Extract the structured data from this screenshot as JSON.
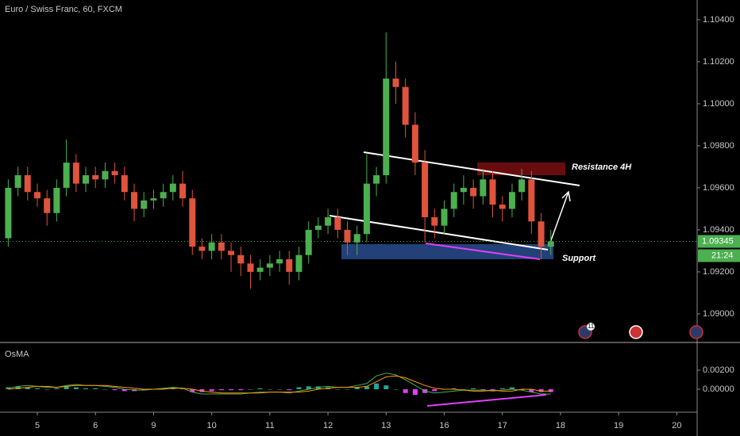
{
  "chart_data": [
    {
      "type": "candlestick",
      "title": "Euro / Swiss Franc, 60, FXCM",
      "x": [
        -0.5,
        -0.333,
        -0.167,
        0,
        0.167,
        0.333,
        0.5,
        0.667,
        0.833,
        1,
        1.167,
        1.333,
        1.5,
        1.667,
        1.833,
        2,
        2.167,
        2.333,
        2.5,
        2.667,
        2.833,
        3,
        3.167,
        3.333,
        3.5,
        3.667,
        3.833,
        4,
        4.167,
        4.333,
        4.5,
        4.667,
        4.833,
        5,
        5.167,
        5.333,
        5.5,
        5.667,
        5.833,
        6,
        6.167,
        6.333,
        6.5,
        6.667,
        6.833,
        7,
        7.167,
        7.333,
        7.5,
        7.667,
        7.833,
        8,
        8.167,
        8.333,
        8.5,
        8.667,
        8.833
      ],
      "open": [
        1.0936,
        1.096,
        1.0966,
        1.0958,
        1.0955,
        1.0948,
        1.096,
        1.0972,
        1.0962,
        1.0966,
        1.0964,
        1.0968,
        1.0966,
        1.0958,
        1.095,
        1.0954,
        1.0955,
        1.0958,
        1.0962,
        1.0955,
        1.0932,
        1.093,
        1.0934,
        1.093,
        1.0928,
        1.0924,
        1.092,
        1.0922,
        1.0924,
        1.0926,
        1.092,
        1.0928,
        1.094,
        1.0942,
        1.0946,
        1.094,
        1.0934,
        1.0938,
        1.0962,
        1.0966,
        1.1012,
        1.1008,
        1.099,
        1.0972,
        1.0946,
        1.0942,
        1.095,
        1.0958,
        1.096,
        1.0956,
        1.0964,
        1.0952,
        1.095,
        1.0958,
        1.0964,
        1.0944,
        1.0932
      ],
      "high": [
        1.0964,
        1.097,
        1.097,
        1.0962,
        1.0959,
        1.0964,
        1.0983,
        1.0976,
        1.097,
        1.097,
        1.0972,
        1.0972,
        1.097,
        1.0962,
        1.0958,
        1.0959,
        1.0962,
        1.0966,
        1.0968,
        1.0959,
        1.0936,
        1.0938,
        1.0938,
        1.0934,
        1.0932,
        1.0928,
        1.0926,
        1.0928,
        1.093,
        1.093,
        1.0932,
        1.0944,
        1.0946,
        1.095,
        1.095,
        1.0944,
        1.0942,
        1.0976,
        1.097,
        1.1034,
        1.102,
        1.1012,
        1.0996,
        1.0978,
        1.095,
        1.0954,
        1.0962,
        1.0966,
        1.0964,
        1.0969,
        1.0968,
        1.0956,
        1.0962,
        1.0969,
        1.0968,
        1.0948,
        1.094
      ],
      "low": [
        1.0932,
        1.0956,
        1.0954,
        1.0951,
        1.0942,
        1.0944,
        1.0956,
        1.0958,
        1.0958,
        1.096,
        1.096,
        1.0962,
        1.0954,
        1.0944,
        1.0946,
        1.095,
        1.0951,
        1.0954,
        1.0951,
        1.0928,
        1.0926,
        1.0926,
        1.0926,
        1.092,
        1.0918,
        1.0912,
        1.0916,
        1.0918,
        1.092,
        1.0914,
        1.0916,
        1.0924,
        1.0936,
        1.0938,
        1.0936,
        1.0928,
        1.0928,
        1.0934,
        1.0956,
        1.0962,
        1.1,
        1.0984,
        1.0966,
        1.0934,
        1.0936,
        1.0938,
        1.0946,
        1.0952,
        1.095,
        1.0952,
        1.0946,
        1.0944,
        1.0946,
        1.0954,
        1.0938,
        1.0926,
        1.0928
      ],
      "close": [
        1.096,
        1.0966,
        1.0958,
        1.0955,
        1.0948,
        1.096,
        1.0972,
        1.0962,
        1.0966,
        1.0964,
        1.0968,
        1.0966,
        1.0958,
        1.095,
        1.0954,
        1.0955,
        1.0958,
        1.0962,
        1.0955,
        1.0932,
        1.093,
        1.0934,
        1.093,
        1.0928,
        1.0924,
        1.092,
        1.0922,
        1.0924,
        1.0926,
        1.092,
        1.0928,
        1.094,
        1.0942,
        1.0946,
        1.094,
        1.0934,
        1.0938,
        1.0962,
        1.0966,
        1.1012,
        1.1008,
        1.099,
        1.0972,
        1.0946,
        1.0942,
        1.095,
        1.0958,
        1.096,
        1.0956,
        1.0964,
        1.0952,
        1.095,
        1.0958,
        1.0964,
        1.0944,
        1.0932,
        1.09345
      ],
      "up_color": "#4caf50",
      "down_color": "#e0533c",
      "xlim": [
        -0.642,
        11.35
      ],
      "ylim": [
        1.08864,
        1.10494
      ],
      "yticks": [
        {
          "value": 1.09,
          "label": "1.09000"
        },
        {
          "value": 1.092,
          "label": "1.09200"
        },
        {
          "value": 1.094,
          "label": "1.09400"
        },
        {
          "value": 1.096,
          "label": "1.09600"
        },
        {
          "value": 1.098,
          "label": "1.09800"
        },
        {
          "value": 1.1,
          "label": "1.10000"
        },
        {
          "value": 1.102,
          "label": "1.10200"
        },
        {
          "value": 1.104,
          "label": "1.10400"
        }
      ],
      "last_price": 1.09345,
      "countdown": "21:24",
      "annotations": [
        "Resistance 4H",
        "Support"
      ],
      "event_badge": "11"
    },
    {
      "type": "osma",
      "title": "OsMA",
      "x": [
        -0.5,
        -0.333,
        -0.167,
        0,
        0.167,
        0.333,
        0.5,
        0.667,
        0.833,
        1,
        1.167,
        1.333,
        1.5,
        1.667,
        1.833,
        2,
        2.167,
        2.333,
        2.5,
        2.667,
        2.833,
        3,
        3.167,
        3.333,
        3.5,
        3.667,
        3.833,
        4,
        4.167,
        4.333,
        4.5,
        4.667,
        4.833,
        5,
        5.167,
        5.333,
        5.5,
        5.667,
        5.833,
        6,
        6.167,
        6.333,
        6.5,
        6.667,
        6.833,
        7,
        7.167,
        7.333,
        7.5,
        7.667,
        7.833,
        8,
        8.167,
        8.333,
        8.5,
        8.667,
        8.833
      ],
      "histogram": [
        0.0002,
        0.0003,
        0.0002,
        0.0001,
        0,
        0.0001,
        0.0003,
        0.0002,
        0.0001,
        0.0001,
        0,
        -0.0001,
        -0.0002,
        -0.0002,
        -0.0001,
        0,
        0.0001,
        0.0002,
        0.0001,
        -0.0003,
        -0.0003,
        -0.0002,
        -0.0001,
        -0.0001,
        -0.0001,
        0,
        0.0001,
        0,
        0,
        -0.0001,
        0.0002,
        0.0003,
        0.0003,
        0.0002,
        0,
        0,
        0.0002,
        0.0003,
        0.0006,
        0.0004,
        0,
        -0.0004,
        -0.0006,
        -0.0004,
        -0.0002,
        0,
        0.0001,
        0,
        0.0001,
        -0.0001,
        -0.0001,
        0.0001,
        0.0002,
        -0.0001,
        -0.0003,
        -0.0003,
        -0.0003
      ],
      "up_color": "#26a69a",
      "down_color": "#e040fb",
      "series": [
        {
          "color": "#4caf50",
          "values": [
            0.0001,
            0.0003,
            0.0004,
            0.0003,
            0.0002,
            0.0002,
            0.0004,
            0.0005,
            0.0004,
            0.0004,
            0.0003,
            0.0002,
            0,
            -0.0001,
            -0.0001,
            0,
            0.0001,
            0.0002,
            0.0001,
            -0.0003,
            -0.0005,
            -0.0005,
            -0.0005,
            -0.0005,
            -0.0005,
            -0.0004,
            -0.0003,
            -0.0003,
            -0.0003,
            -0.0004,
            -0.0002,
            0,
            0.0002,
            0.0003,
            0.0002,
            0.0002,
            0.0004,
            0.0006,
            0.0014,
            0.0017,
            0.0015,
            0.001,
            0.0004,
            -0.0002,
            -0.0004,
            -0.0003,
            -0.0002,
            -0.0001,
            -0.0001,
            -0.0001,
            -0.0002,
            -0.0001,
            0,
            -0.0001,
            -0.0003,
            -0.0005,
            -0.0005
          ]
        },
        {
          "color": "#ff9800",
          "values": [
            0,
            0.0001,
            0.0002,
            0.0003,
            0.0003,
            0.0002,
            0.0003,
            0.0004,
            0.0004,
            0.0004,
            0.0004,
            0.0003,
            0.0002,
            0.0001,
            0,
            0,
            0,
            0.0001,
            0.0001,
            0,
            -0.0002,
            -0.0003,
            -0.0004,
            -0.0004,
            -0.0004,
            -0.0004,
            -0.0004,
            -0.0003,
            -0.0003,
            -0.0003,
            -0.0003,
            -0.0002,
            0,
            0.0001,
            0.0002,
            0.0002,
            0.0002,
            0.0003,
            0.0008,
            0.0013,
            0.0014,
            0.0012,
            0.0008,
            0.0004,
            0.0001,
            0,
            0,
            -0.0001,
            -0.0002,
            -0.0002,
            -0.0001,
            -0.0002,
            -0.0002,
            0,
            0,
            -0.0002,
            -0.0002
          ]
        }
      ],
      "xlim": [
        -0.642,
        11.35
      ],
      "ylim": [
        -0.00242,
        0.00492
      ],
      "yticks": [
        {
          "value": 0,
          "label": "0.00000"
        },
        {
          "value": 0.002,
          "label": "0.00200"
        }
      ],
      "xticks": [
        {
          "value": 0,
          "label": "5"
        },
        {
          "value": 1,
          "label": "6"
        },
        {
          "value": 2,
          "label": "9"
        },
        {
          "value": 3,
          "label": "10"
        },
        {
          "value": 4,
          "label": "11"
        },
        {
          "value": 5,
          "label": "12"
        },
        {
          "value": 6,
          "label": "13"
        },
        {
          "value": 7,
          "label": "16"
        },
        {
          "value": 8,
          "label": "17"
        },
        {
          "value": 9,
          "label": "18"
        },
        {
          "value": 10,
          "label": "19"
        },
        {
          "value": 11,
          "label": "20"
        }
      ]
    }
  ]
}
